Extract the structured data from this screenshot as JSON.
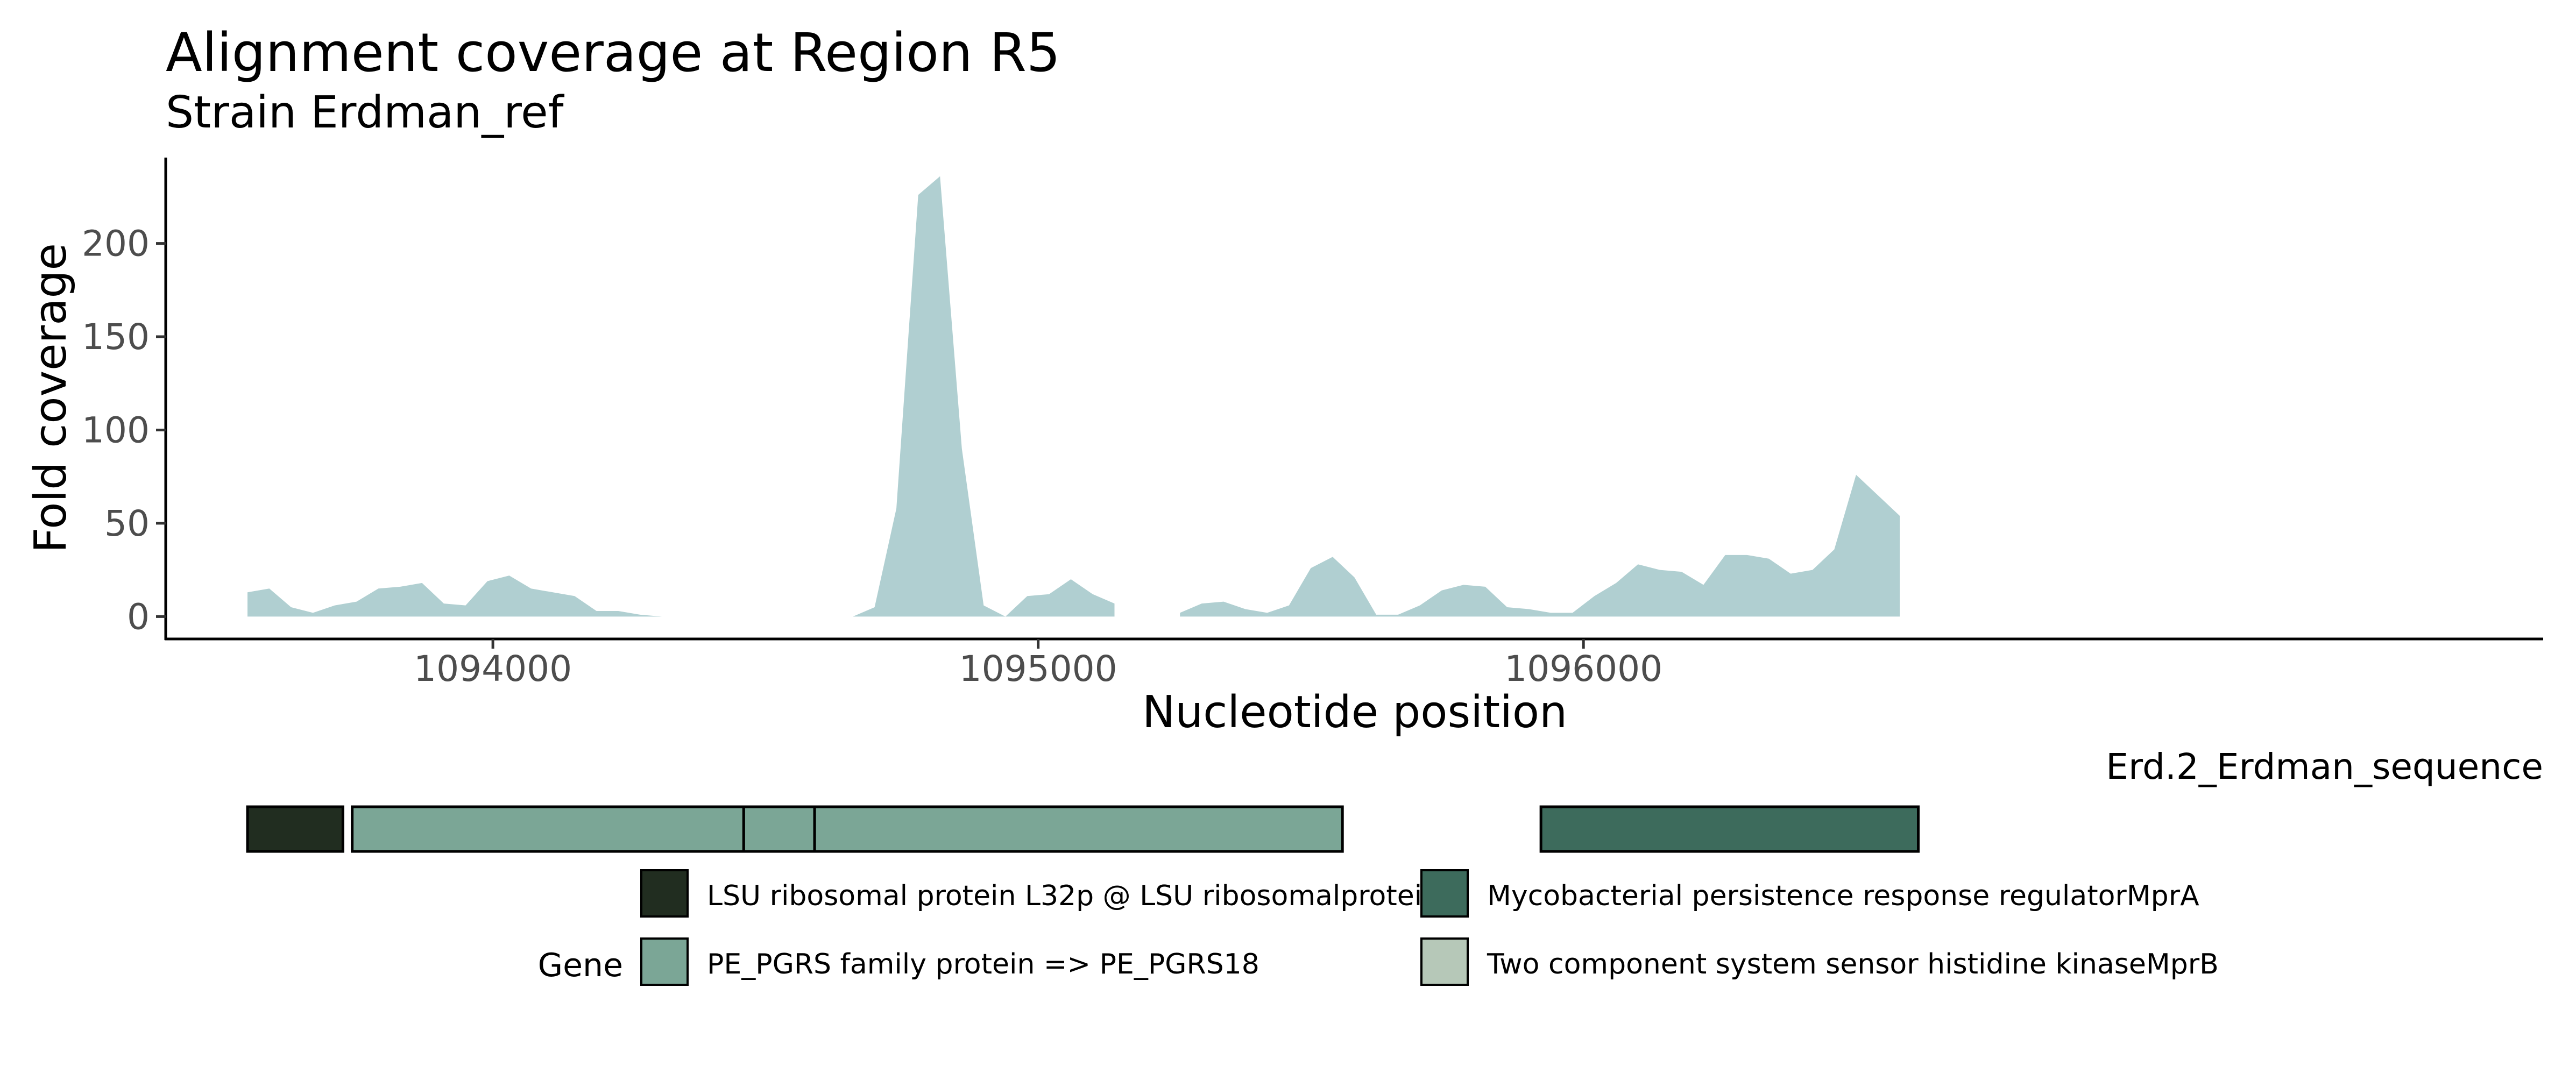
{
  "chart_data": {
    "type": "area",
    "title": "Alignment coverage at Region R5",
    "subtitle": "Strain Erdman_ref",
    "xlabel": "Nucleotide position",
    "ylabel": "Fold coverage",
    "xlim": [
      1093400,
      1097760
    ],
    "ylim": [
      -12,
      246
    ],
    "x_ticks": [
      1094000,
      1095000,
      1096000
    ],
    "x_tick_labels": [
      "1094000",
      "1095000",
      "1096000"
    ],
    "y_ticks": [
      0,
      50,
      100,
      150,
      200
    ],
    "y_tick_labels": [
      "0",
      "50",
      "100",
      "150",
      "200"
    ],
    "grid": false,
    "fill_color": "#b0cfd1",
    "series": [
      {
        "segments": [
          [
            [
              1093550,
              13
            ],
            [
              1093590,
              15
            ],
            [
              1093630,
              5
            ],
            [
              1093670,
              2
            ],
            [
              1093710,
              6
            ],
            [
              1093750,
              8
            ],
            [
              1093790,
              15
            ],
            [
              1093830,
              16
            ],
            [
              1093870,
              18
            ],
            [
              1093910,
              7
            ],
            [
              1093950,
              6
            ],
            [
              1093990,
              19
            ],
            [
              1094030,
              22
            ],
            [
              1094070,
              15
            ],
            [
              1094110,
              13
            ],
            [
              1094150,
              11
            ],
            [
              1094190,
              3
            ],
            [
              1094230,
              3
            ],
            [
              1094270,
              1
            ],
            [
              1094310,
              0
            ]
          ],
          [
            [
              1094660,
              0
            ],
            [
              1094700,
              5
            ],
            [
              1094740,
              58
            ],
            [
              1094780,
              226
            ],
            [
              1094820,
              236
            ],
            [
              1094860,
              90
            ],
            [
              1094900,
              6
            ],
            [
              1094940,
              0
            ],
            [
              1094980,
              11
            ],
            [
              1095020,
              12
            ],
            [
              1095060,
              20
            ],
            [
              1095100,
              12
            ],
            [
              1095140,
              7
            ]
          ],
          [
            [
              1095260,
              2
            ],
            [
              1095300,
              7
            ],
            [
              1095340,
              8
            ],
            [
              1095380,
              4
            ],
            [
              1095420,
              2
            ],
            [
              1095460,
              6
            ],
            [
              1095500,
              26
            ],
            [
              1095540,
              32
            ],
            [
              1095580,
              21
            ],
            [
              1095620,
              1
            ],
            [
              1095660,
              1
            ],
            [
              1095700,
              6
            ],
            [
              1095740,
              14
            ],
            [
              1095780,
              17
            ],
            [
              1095820,
              16
            ],
            [
              1095860,
              5
            ],
            [
              1095900,
              4
            ],
            [
              1095940,
              2
            ],
            [
              1095980,
              2
            ],
            [
              1096020,
              11
            ],
            [
              1096060,
              18
            ],
            [
              1096100,
              28
            ],
            [
              1096140,
              25
            ],
            [
              1096180,
              24
            ],
            [
              1096220,
              17
            ],
            [
              1096260,
              33
            ],
            [
              1096300,
              33
            ],
            [
              1096340,
              31
            ],
            [
              1096380,
              23
            ],
            [
              1096420,
              25
            ],
            [
              1096460,
              36
            ],
            [
              1096500,
              76
            ],
            [
              1096540,
              65
            ],
            [
              1096580,
              54
            ]
          ]
        ]
      }
    ],
    "gene_track": {
      "label": "Erd.2_Erdman_sequence",
      "genes": [
        {
          "start": 1093550,
          "end": 1093725,
          "category": "LSU ribosomal protein L32p @ LSU ribosomalprotein"
        },
        {
          "start": 1093742,
          "end": 1094460,
          "category": "PE_PGRS family protein => PE_PGRS18"
        },
        {
          "start": 1094460,
          "end": 1094590,
          "category": "PE_PGRS family protein => PE_PGRS18"
        },
        {
          "start": 1094590,
          "end": 1095558,
          "category": "PE_PGRS family protein => PE_PGRS18"
        },
        {
          "start": 1095922,
          "end": 1096614,
          "category": "Mycobacterial persistence response regulatorMprA"
        }
      ]
    },
    "legend": {
      "title": "Gene",
      "placement": "bottom",
      "entries": [
        {
          "label": "LSU ribosomal protein L32p @ LSU ribosomalprotein",
          "color": "#212d20"
        },
        {
          "label": "Mycobacterial persistence response regulatorMprA",
          "color": "#3d6b5c"
        },
        {
          "label": "PE_PGRS family protein => PE_PGRS18",
          "color": "#7ba696"
        },
        {
          "label": "Two component system sensor histidine kinaseMprB",
          "color": "#b6c8b8"
        }
      ]
    }
  }
}
